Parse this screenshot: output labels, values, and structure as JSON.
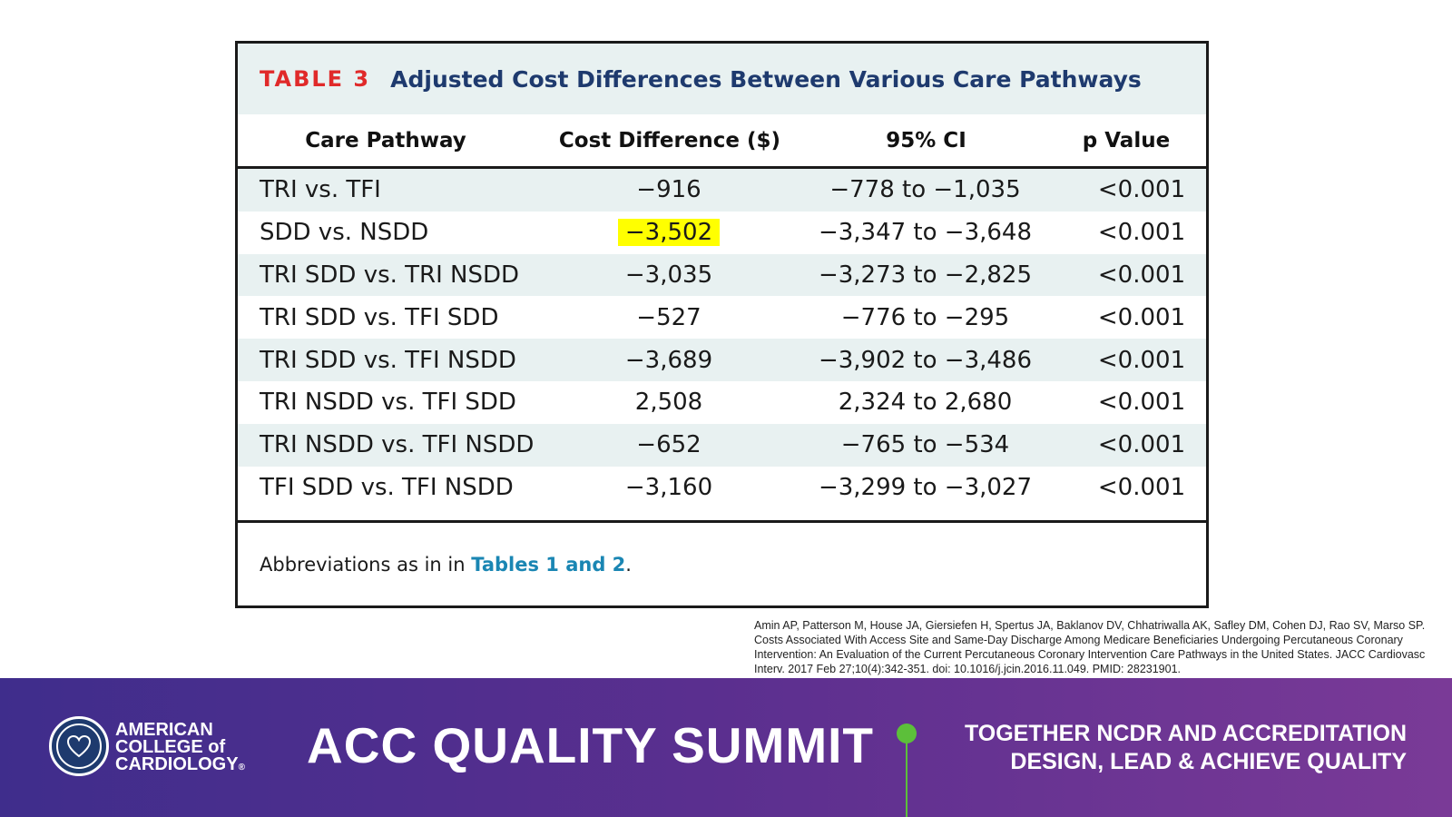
{
  "table": {
    "label": "TABLE 3",
    "title": "Adjusted Cost Differences Between Various Care Pathways",
    "headers": [
      "Care Pathway",
      "Cost Difference ($)",
      "95% CI",
      "p Value"
    ],
    "rows": [
      {
        "pathway": "TRI vs. TFI",
        "cost": "−916",
        "ci": "−778 to −1,035",
        "p": "<0.001"
      },
      {
        "pathway": "SDD vs. NSDD",
        "cost": "−3,502",
        "ci": "−3,347 to −3,648",
        "p": "<0.001"
      },
      {
        "pathway": "TRI SDD vs. TRI NSDD",
        "cost": "−3,035",
        "ci": "−3,273 to −2,825",
        "p": "<0.001"
      },
      {
        "pathway": "TRI SDD vs. TFI SDD",
        "cost": "−527",
        "ci": "−776 to −295",
        "p": "<0.001"
      },
      {
        "pathway": "TRI SDD vs. TFI NSDD",
        "cost": "−3,689",
        "ci": "−3,902 to −3,486",
        "p": "<0.001"
      },
      {
        "pathway": "TRI NSDD vs. TFI SDD",
        "cost": "2,508",
        "ci": "2,324 to 2,680",
        "p": "<0.001"
      },
      {
        "pathway": "TRI NSDD vs. TFI NSDD",
        "cost": "−652",
        "ci": "−765 to −534",
        "p": "<0.001"
      },
      {
        "pathway": "TFI SDD vs. TFI NSDD",
        "cost": "−3,160",
        "ci": "−3,299 to −3,027",
        "p": "<0.001"
      }
    ],
    "highlight_color": "#ffff00",
    "footer_prefix": "Abbreviations as in in ",
    "footer_link": "Tables 1 and 2",
    "footer_suffix": "."
  },
  "citation": "Amin AP, Patterson M, House JA, Giersiefen H, Spertus JA, Baklanov DV, Chhatriwalla AK, Safley DM, Cohen DJ, Rao SV, Marso SP. Costs Associated With Access Site and Same-Day Discharge Among Medicare Beneficiaries Undergoing Percutaneous Coronary Intervention: An Evaluation of the Current Percutaneous Coronary Intervention Care Pathways in the United States. JACC Cardiovasc Interv. 2017 Feb 27;10(4):342-351. doi: 10.1016/j.jcin.2016.11.049. PMID: 28231901.",
  "banner": {
    "org_line1": "AMERICAN",
    "org_line2": "COLLEGE of",
    "org_line3": "CARDIOLOGY",
    "org_mark": "®",
    "event": "ACC QUALITY SUMMIT",
    "tagline_line1": "TOGETHER NCDR AND ACCREDITATION",
    "tagline_line2": "DESIGN, LEAD & ACHIEVE QUALITY",
    "logo_icon": "heart-seal-icon",
    "accent_color": "#5cbf3a"
  }
}
